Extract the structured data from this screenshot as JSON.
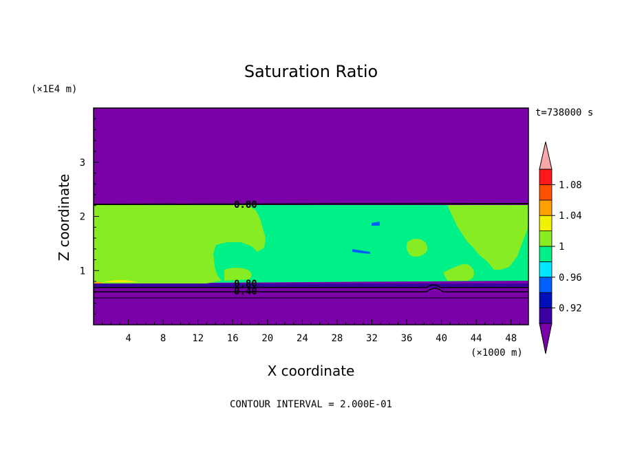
{
  "chart_data": {
    "type": "heatmap",
    "title": "Saturation Ratio",
    "xlabel": "X coordinate",
    "ylabel": "Z coordinate",
    "x_unit": "(×1000 m)",
    "y_unit": "(×1E4 m)",
    "time_label": "t=738000 s",
    "footer": "CONTOUR INTERVAL = 2.000E-01",
    "xlim": [
      0,
      50
    ],
    "ylim": [
      0,
      4
    ],
    "xticks": [
      "4",
      "8",
      "12",
      "16",
      "20",
      "24",
      "28",
      "32",
      "36",
      "40",
      "44",
      "48"
    ],
    "yticks": [
      "1",
      "2",
      "3"
    ],
    "contour_labels": [
      "0.80",
      "0.60",
      "0.40"
    ],
    "colorbar": {
      "tick_labels": [
        "1.08",
        "1.04",
        "1",
        "0.96",
        "0.92"
      ],
      "levels": [
        0.92,
        0.94,
        0.96,
        0.98,
        1.0,
        1.02,
        1.04,
        1.06,
        1.08,
        1.1
      ],
      "colors": [
        "#7a00a8",
        "#3a00a0",
        "#0010b8",
        "#0060ff",
        "#00e8ff",
        "#00f088",
        "#88ec22",
        "#f0f000",
        "#ffa000",
        "#ff5000",
        "#ff1818",
        "#f8a8a8"
      ]
    },
    "regions": {
      "dry_aloft": {
        "z_range": [
          2.25,
          4.0
        ],
        "value": "<0.92"
      },
      "moist_layer_supersat": {
        "x_range": [
          0,
          16
        ],
        "z_range": [
          0.8,
          2.25
        ],
        "value": "1-1.02"
      },
      "moist_layer_near_sat": {
        "x_range": [
          16,
          50
        ],
        "z_range": [
          0.8,
          2.25
        ],
        "value": "0.98-1"
      },
      "dry_below": {
        "z_range": [
          0,
          0.78
        ],
        "value": "<0.92"
      }
    }
  }
}
